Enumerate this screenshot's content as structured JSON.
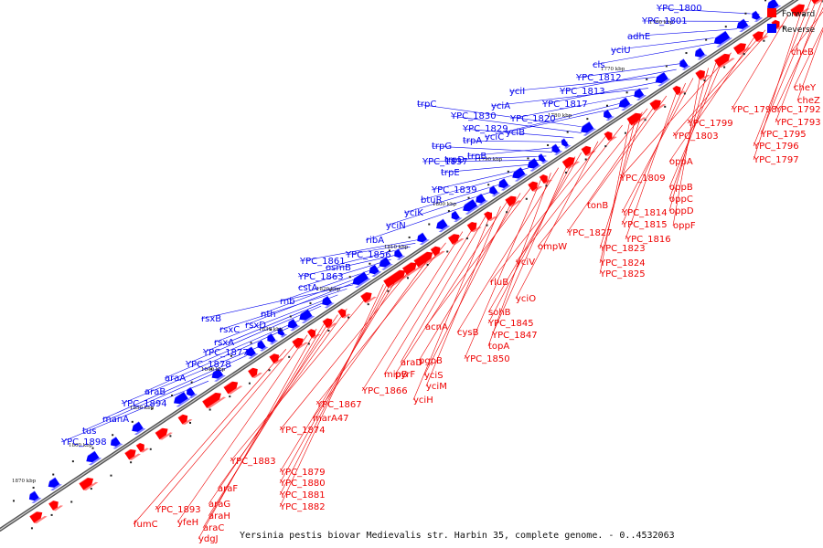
{
  "caption": "Yersinia pestis biovar Medievalis str. Harbin 35, complete genome. - 0..4532063",
  "legend": {
    "forward": {
      "label": "Forward",
      "color": "#ff0000"
    },
    "reverse": {
      "label": "Reverse",
      "color": "#0000ff"
    }
  },
  "axis": {
    "tick_labels": [
      "1760 kbp",
      "1770 kbp",
      "1780 kbp",
      "1790 kbp",
      "1800 kbp",
      "1810 kbp",
      "1820 kbp",
      "1830 kbp",
      "1840 kbp",
      "1850 kbp",
      "1860 kbp",
      "1870 kbp"
    ]
  },
  "reverse_genes": [
    "YPC_1800",
    "YPC_1801",
    "adhE",
    "yciU",
    "cls",
    "YPC_1812",
    "YPC_1813",
    "yciI",
    "YPC_1817",
    "yciA",
    "YPC_1820",
    "yciC",
    "yciB",
    "trpC",
    "YPC_1830",
    "YPC_1829",
    "trpA",
    "trpB",
    "trpG",
    "trpD",
    "YPC_1837",
    "trpE",
    "YPC_1839",
    "btuR",
    "yciK",
    "yciN",
    "ribA",
    "YPC_1861",
    "YPC_1856",
    "osmB",
    "YPC_1863",
    "cstA",
    "rnb",
    "nth",
    "rsxB",
    "rsxD",
    "rsxC",
    "rsxA",
    "YPC_1877",
    "YPC_1878",
    "araA",
    "araB",
    "YPC_1894",
    "manA",
    "tus",
    "YPC_1898"
  ],
  "forward_genes": [
    "cheB",
    "cheY",
    "cheZ",
    "YPC_1792",
    "YPC_1793",
    "YPC_1795",
    "YPC_1796",
    "YPC_1797",
    "YPC_1798",
    "YPC_1799",
    "YPC_1803",
    "oppA",
    "YPC_1809",
    "oppB",
    "oppC",
    "oppD",
    "oppF",
    "YPC_1814",
    "YPC_1815",
    "YPC_1816",
    "tonB",
    "YPC_1827",
    "ompW",
    "YPC_1823",
    "YPC_1824",
    "YPC_1825",
    "yciV",
    "rluB",
    "yciO",
    "sohB",
    "YPC_1845",
    "YPC_1847",
    "cysB",
    "topA",
    "YPC_1850",
    "acnA",
    "pgpB",
    "yciS",
    "pyrF",
    "yciM",
    "yciH",
    "araD",
    "mipB",
    "YPC_1866",
    "YPC_1867",
    "marA47",
    "YPC_1874",
    "YPC_1879",
    "YPC_1880",
    "YPC_1881",
    "YPC_1882",
    "YPC_1883",
    "araF",
    "araG",
    "araH",
    "araC",
    "ydgJ",
    "yfeH",
    "YPC_1893",
    "fumC"
  ]
}
